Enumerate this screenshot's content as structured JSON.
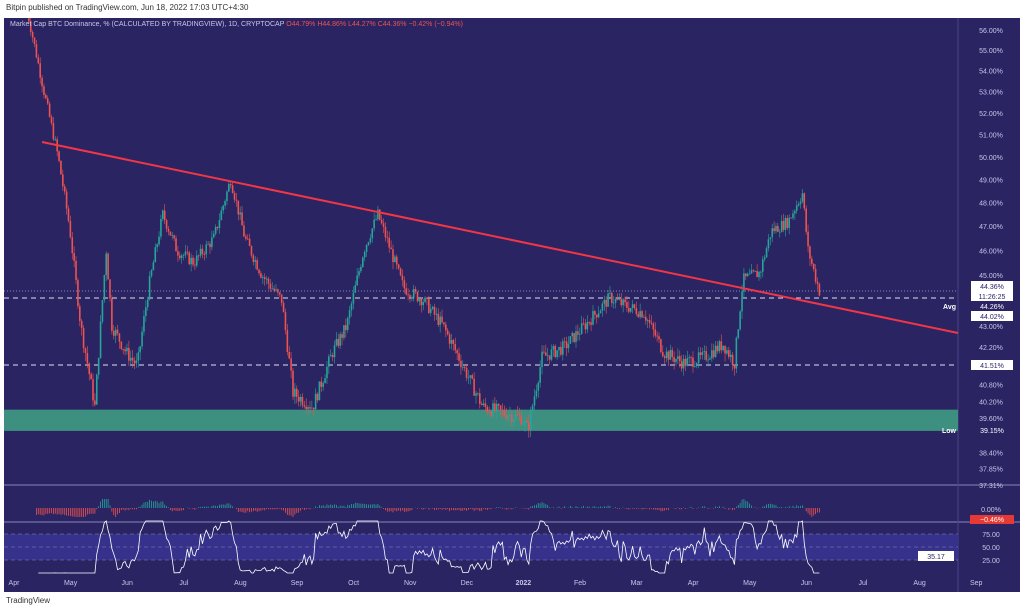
{
  "header": {
    "published": "Bitpin published on TradingView.com, Jun 18, 2022 17:03 UTC+4:30"
  },
  "legend": {
    "title": "Market Cap BTC Dominance, % (CALCULATED BY TRADINGVIEW), 1D, CRYPTOCAP",
    "o": "O44.79%",
    "h": "H44.86%",
    "l": "L44.27%",
    "c": "C44.36%",
    "chg": "−0.42% (−0.94%)"
  },
  "footer": {
    "brand": "TradingView"
  },
  "chart_data": {
    "type": "candlestick",
    "title": "Market Cap BTC Dominance, %",
    "yscale": "log",
    "ylim": [
      37.0,
      57.0
    ],
    "y_ticks": [
      "56.00%",
      "55.00%",
      "54.00%",
      "53.00%",
      "52.00%",
      "51.00%",
      "50.00%",
      "49.00%",
      "48.00%",
      "47.00%",
      "46.00%",
      "45.00%",
      "43.00%",
      "42.20%",
      "40.80%",
      "40.20%",
      "39.60%",
      "38.40%",
      "37.85%",
      "37.31%"
    ],
    "x_ticks": [
      "Apr",
      "May",
      "Jun",
      "Jul",
      "Aug",
      "Sep",
      "Oct",
      "Nov",
      "Dec",
      "2022",
      "Feb",
      "Mar",
      "Apr",
      "May",
      "Jun",
      "Jul",
      "Aug",
      "Sep"
    ],
    "price_labels": {
      "last": "44.36%",
      "countdown": "11:26:25",
      "avg_label": "Avg",
      "avg": "44.26%",
      "level2": "44.02%",
      "level3": "41.51%",
      "low_label": "Low",
      "low": "39.15%"
    },
    "support_zone": [
      39.15,
      39.9
    ],
    "path_months": [
      0.3,
      0.6,
      0.85,
      1.05,
      1.25,
      1.5,
      1.6,
      1.7,
      1.8,
      2.05,
      2.25,
      2.45,
      2.7,
      2.95,
      3.25,
      3.6,
      3.9,
      4.15,
      4.45,
      4.8,
      5.0,
      5.35,
      5.7,
      5.95,
      6.25,
      6.5,
      6.95,
      7.3,
      7.65,
      8.0,
      8.35,
      8.7,
      9.05,
      9.15,
      9.4,
      9.8,
      10.15,
      10.6,
      10.85,
      11.2,
      11.55,
      11.9,
      12.25,
      12.6,
      12.8,
      12.95,
      13.25,
      13.45,
      13.75,
      14.0,
      14.1,
      14.3
    ],
    "path_values": [
      57,
      53,
      50,
      47,
      43,
      40,
      43,
      46,
      43,
      42,
      41.5,
      44.5,
      47.5,
      46,
      45.5,
      46.5,
      49,
      46.5,
      45,
      44,
      40.5,
      40,
      42,
      43,
      46,
      47.5,
      44.5,
      44,
      43,
      41.5,
      40,
      39.8,
      39.6,
      39.2,
      41.8,
      42.2,
      43,
      44.1,
      43.8,
      43.5,
      42,
      41.6,
      41.8,
      42.3,
      41.6,
      44.8,
      45.1,
      46.8,
      47.2,
      48.4,
      46,
      44.36
    ],
    "macd": {
      "value": "0.00%",
      "last": "−0.46%"
    },
    "rsi": {
      "ticks": [
        "75.00",
        "50.00",
        "25.00"
      ],
      "last": "35.17"
    },
    "trendline": {
      "start": 50.8,
      "end_label": "43.00%"
    }
  },
  "colors": {
    "bg": "#2a2463",
    "up": "#26a69a",
    "down": "#ef5350",
    "trend": "#f23645"
  }
}
